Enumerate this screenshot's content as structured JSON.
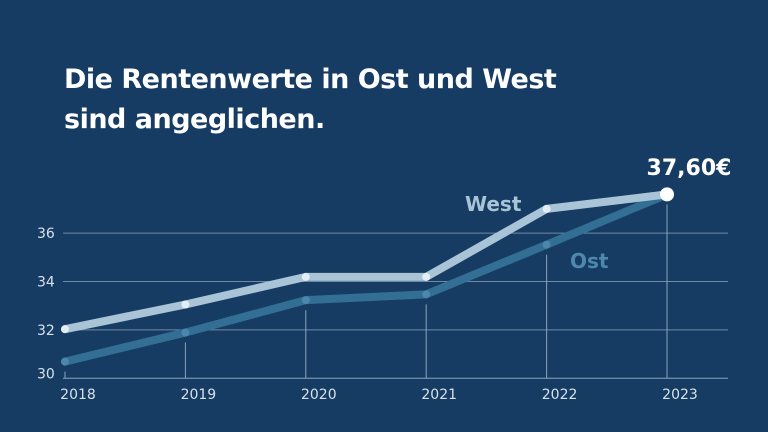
{
  "title_lines": [
    "Die Rentenwerte in Ost und West",
    "sind angeglichen."
  ],
  "chart_data": {
    "type": "line",
    "categories": [
      "2018",
      "2019",
      "2020",
      "2021",
      "2022",
      "2023"
    ],
    "series": [
      {
        "name": "West",
        "values": [
          32.03,
          33.05,
          34.19,
          34.19,
          37.0,
          37.6
        ],
        "color": "#a9c4d6"
      },
      {
        "name": "Ost",
        "values": [
          30.69,
          31.89,
          33.23,
          33.47,
          35.52,
          37.6
        ],
        "color": "#336f94"
      }
    ],
    "yticks": [
      30,
      32,
      34,
      36
    ],
    "ylim": [
      30,
      37.8
    ],
    "grid": true,
    "end_label": "37,60€",
    "background": "#173c63"
  }
}
